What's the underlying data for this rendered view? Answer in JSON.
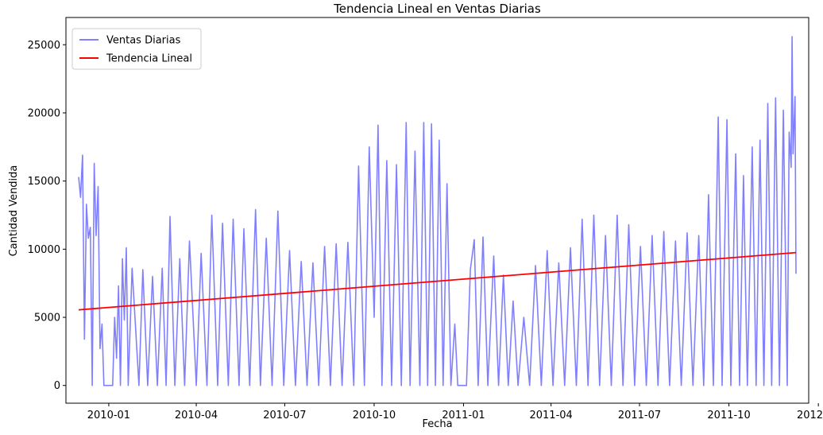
{
  "chart_data": {
    "type": "line",
    "title": "Tendencia Lineal en Ventas Diarias",
    "xlabel": "Fecha",
    "ylabel": "Cantidad Vendida",
    "x_range": [
      "2009-12-01",
      "2011-12-09"
    ],
    "x_ticks": [
      "2010-01",
      "2010-04",
      "2010-07",
      "2010-10",
      "2011-01",
      "2011-04",
      "2011-07",
      "2011-10",
      "2012-01"
    ],
    "ylim": [
      -1300,
      27000
    ],
    "y_ticks": [
      0,
      5000,
      10000,
      15000,
      20000,
      25000
    ],
    "grid": false,
    "legend_position": "top-left",
    "series": [
      {
        "name": "Ventas Diarias",
        "color": "#8080ff",
        "points": [
          [
            "2009-12-01",
            15300
          ],
          [
            "2009-12-03",
            13800
          ],
          [
            "2009-12-05",
            16900
          ],
          [
            "2009-12-07",
            3400
          ],
          [
            "2009-12-09",
            13300
          ],
          [
            "2009-12-11",
            10800
          ],
          [
            "2009-12-13",
            11600
          ],
          [
            "2009-12-15",
            0
          ],
          [
            "2009-12-17",
            16300
          ],
          [
            "2009-12-19",
            11000
          ],
          [
            "2009-12-21",
            14600
          ],
          [
            "2009-12-23",
            2700
          ],
          [
            "2009-12-25",
            4500
          ],
          [
            "2009-12-27",
            0
          ],
          [
            "2010-01-05",
            0
          ],
          [
            "2010-01-07",
            5000
          ],
          [
            "2010-01-09",
            2000
          ],
          [
            "2010-01-11",
            7300
          ],
          [
            "2010-01-13",
            0
          ],
          [
            "2010-01-15",
            9300
          ],
          [
            "2010-01-17",
            4800
          ],
          [
            "2010-01-19",
            10100
          ],
          [
            "2010-01-21",
            0
          ],
          [
            "2010-01-25",
            8600
          ],
          [
            "2010-02-01",
            0
          ],
          [
            "2010-02-05",
            8500
          ],
          [
            "2010-02-10",
            0
          ],
          [
            "2010-02-15",
            8000
          ],
          [
            "2010-02-20",
            0
          ],
          [
            "2010-02-25",
            8600
          ],
          [
            "2010-03-01",
            0
          ],
          [
            "2010-03-05",
            12400
          ],
          [
            "2010-03-10",
            0
          ],
          [
            "2010-03-15",
            9300
          ],
          [
            "2010-03-20",
            0
          ],
          [
            "2010-03-25",
            10600
          ],
          [
            "2010-04-01",
            0
          ],
          [
            "2010-04-06",
            9700
          ],
          [
            "2010-04-12",
            0
          ],
          [
            "2010-04-17",
            12500
          ],
          [
            "2010-04-23",
            0
          ],
          [
            "2010-04-28",
            11900
          ],
          [
            "2010-05-04",
            0
          ],
          [
            "2010-05-09",
            12200
          ],
          [
            "2010-05-15",
            0
          ],
          [
            "2010-05-20",
            11500
          ],
          [
            "2010-05-26",
            0
          ],
          [
            "2010-06-01",
            12900
          ],
          [
            "2010-06-06",
            0
          ],
          [
            "2010-06-12",
            10800
          ],
          [
            "2010-06-18",
            0
          ],
          [
            "2010-06-24",
            12800
          ],
          [
            "2010-06-30",
            0
          ],
          [
            "2010-07-06",
            9900
          ],
          [
            "2010-07-12",
            0
          ],
          [
            "2010-07-18",
            9100
          ],
          [
            "2010-07-24",
            0
          ],
          [
            "2010-07-30",
            9000
          ],
          [
            "2010-08-05",
            0
          ],
          [
            "2010-08-11",
            10200
          ],
          [
            "2010-08-17",
            0
          ],
          [
            "2010-08-23",
            10400
          ],
          [
            "2010-08-29",
            0
          ],
          [
            "2010-09-04",
            10500
          ],
          [
            "2010-09-10",
            0
          ],
          [
            "2010-09-15",
            16100
          ],
          [
            "2010-09-21",
            0
          ],
          [
            "2010-09-26",
            17500
          ],
          [
            "2010-10-01",
            5000
          ],
          [
            "2010-10-05",
            19100
          ],
          [
            "2010-10-09",
            0
          ],
          [
            "2010-10-14",
            16500
          ],
          [
            "2010-10-19",
            0
          ],
          [
            "2010-10-24",
            16200
          ],
          [
            "2010-10-29",
            0
          ],
          [
            "2010-11-03",
            19300
          ],
          [
            "2010-11-07",
            0
          ],
          [
            "2010-11-12",
            17200
          ],
          [
            "2010-11-17",
            0
          ],
          [
            "2010-11-21",
            19300
          ],
          [
            "2010-11-25",
            0
          ],
          [
            "2010-11-29",
            19200
          ],
          [
            "2010-12-03",
            0
          ],
          [
            "2010-12-07",
            18000
          ],
          [
            "2010-12-11",
            0
          ],
          [
            "2010-12-15",
            14800
          ],
          [
            "2010-12-19",
            0
          ],
          [
            "2010-12-23",
            4500
          ],
          [
            "2010-12-26",
            0
          ],
          [
            "2011-01-04",
            0
          ],
          [
            "2011-01-08",
            8500
          ],
          [
            "2011-01-12",
            10700
          ],
          [
            "2011-01-16",
            0
          ],
          [
            "2011-01-21",
            10900
          ],
          [
            "2011-01-26",
            0
          ],
          [
            "2011-02-01",
            9500
          ],
          [
            "2011-02-06",
            0
          ],
          [
            "2011-02-11",
            8100
          ],
          [
            "2011-02-16",
            0
          ],
          [
            "2011-02-21",
            6200
          ],
          [
            "2011-02-26",
            0
          ],
          [
            "2011-03-04",
            5000
          ],
          [
            "2011-03-10",
            0
          ],
          [
            "2011-03-16",
            8800
          ],
          [
            "2011-03-22",
            0
          ],
          [
            "2011-03-28",
            9900
          ],
          [
            "2011-04-03",
            0
          ],
          [
            "2011-04-09",
            9000
          ],
          [
            "2011-04-15",
            0
          ],
          [
            "2011-04-21",
            10100
          ],
          [
            "2011-04-27",
            0
          ],
          [
            "2011-05-03",
            12200
          ],
          [
            "2011-05-09",
            0
          ],
          [
            "2011-05-15",
            12500
          ],
          [
            "2011-05-21",
            0
          ],
          [
            "2011-05-27",
            11000
          ],
          [
            "2011-06-02",
            0
          ],
          [
            "2011-06-08",
            12500
          ],
          [
            "2011-06-14",
            0
          ],
          [
            "2011-06-20",
            11800
          ],
          [
            "2011-06-26",
            0
          ],
          [
            "2011-07-02",
            10200
          ],
          [
            "2011-07-08",
            0
          ],
          [
            "2011-07-14",
            11000
          ],
          [
            "2011-07-20",
            0
          ],
          [
            "2011-07-26",
            11300
          ],
          [
            "2011-08-01",
            0
          ],
          [
            "2011-08-07",
            10600
          ],
          [
            "2011-08-13",
            0
          ],
          [
            "2011-08-19",
            11200
          ],
          [
            "2011-08-25",
            0
          ],
          [
            "2011-08-31",
            11000
          ],
          [
            "2011-09-05",
            0
          ],
          [
            "2011-09-10",
            14000
          ],
          [
            "2011-09-15",
            0
          ],
          [
            "2011-09-20",
            19700
          ],
          [
            "2011-09-24",
            0
          ],
          [
            "2011-09-29",
            19500
          ],
          [
            "2011-10-03",
            0
          ],
          [
            "2011-10-08",
            17000
          ],
          [
            "2011-10-12",
            0
          ],
          [
            "2011-10-16",
            15400
          ],
          [
            "2011-10-20",
            0
          ],
          [
            "2011-10-25",
            17500
          ],
          [
            "2011-10-29",
            0
          ],
          [
            "2011-11-02",
            18000
          ],
          [
            "2011-11-06",
            0
          ],
          [
            "2011-11-10",
            20700
          ],
          [
            "2011-11-14",
            0
          ],
          [
            "2011-11-18",
            21100
          ],
          [
            "2011-11-22",
            0
          ],
          [
            "2011-11-26",
            20200
          ],
          [
            "2011-11-30",
            0
          ],
          [
            "2011-12-02",
            18600
          ],
          [
            "2011-12-04",
            16000
          ],
          [
            "2011-12-05",
            25600
          ],
          [
            "2011-12-06",
            17000
          ],
          [
            "2011-12-08",
            21200
          ],
          [
            "2011-12-09",
            8200
          ]
        ]
      },
      {
        "name": "Tendencia Lineal",
        "color": "#ff0000",
        "points": [
          [
            "2009-12-01",
            5550
          ],
          [
            "2011-12-09",
            9750
          ]
        ]
      }
    ]
  }
}
